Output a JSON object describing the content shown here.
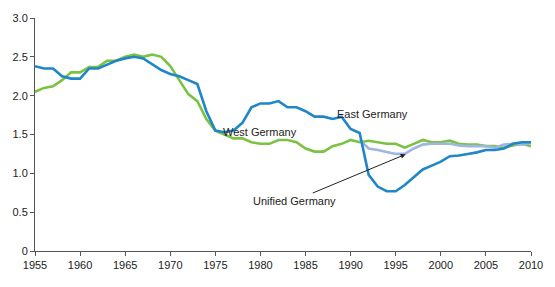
{
  "chart_data": {
    "type": "line",
    "x": [
      1955,
      1956,
      1957,
      1958,
      1959,
      1960,
      1961,
      1962,
      1963,
      1964,
      1965,
      1966,
      1967,
      1968,
      1969,
      1970,
      1971,
      1972,
      1973,
      1974,
      1975,
      1976,
      1977,
      1978,
      1979,
      1980,
      1981,
      1982,
      1983,
      1984,
      1985,
      1986,
      1987,
      1988,
      1989,
      1990,
      1991,
      1992,
      1993,
      1994,
      1995,
      1996,
      1997,
      1998,
      1999,
      2000,
      2001,
      2002,
      2003,
      2004,
      2005,
      2006,
      2007,
      2008,
      2009,
      2010
    ],
    "series": [
      {
        "name": "West Germany",
        "color": "#7cc242",
        "values": [
          2.05,
          2.1,
          2.12,
          2.2,
          2.3,
          2.3,
          2.37,
          2.37,
          2.45,
          2.45,
          2.5,
          2.53,
          2.5,
          2.53,
          2.5,
          2.38,
          2.2,
          2.02,
          1.93,
          1.7,
          1.55,
          1.5,
          1.45,
          1.45,
          1.4,
          1.38,
          1.38,
          1.43,
          1.43,
          1.4,
          1.32,
          1.28,
          1.28,
          1.35,
          1.38,
          1.43,
          1.4,
          1.42,
          1.4,
          1.38,
          1.38,
          1.33,
          1.38,
          1.43,
          1.4,
          1.4,
          1.42,
          1.38,
          1.37,
          1.37,
          1.35,
          1.35,
          1.33,
          1.36,
          1.38,
          1.35
        ]
      },
      {
        "name": "Unified Germany",
        "color": "#9fb6e2",
        "values": [
          null,
          null,
          null,
          null,
          null,
          null,
          null,
          null,
          null,
          null,
          null,
          null,
          null,
          null,
          null,
          null,
          null,
          null,
          null,
          null,
          null,
          null,
          null,
          null,
          null,
          null,
          null,
          null,
          null,
          null,
          null,
          null,
          null,
          null,
          null,
          null,
          1.43,
          1.32,
          1.3,
          1.27,
          1.25,
          1.25,
          1.32,
          1.37,
          1.38,
          1.38,
          1.38,
          1.36,
          1.35,
          1.35,
          1.35,
          1.33,
          1.37,
          1.38,
          1.37,
          1.39
        ]
      },
      {
        "name": "East Germany",
        "color": "#1f86c8",
        "values": [
          2.38,
          2.35,
          2.35,
          2.25,
          2.22,
          2.22,
          2.35,
          2.35,
          2.4,
          2.45,
          2.48,
          2.5,
          2.48,
          2.4,
          2.33,
          2.28,
          2.25,
          2.2,
          2.15,
          1.8,
          1.55,
          1.53,
          1.55,
          1.65,
          1.85,
          1.9,
          1.9,
          1.93,
          1.85,
          1.85,
          1.8,
          1.73,
          1.73,
          1.7,
          1.73,
          1.57,
          1.52,
          0.98,
          0.83,
          0.77,
          0.77,
          0.85,
          0.95,
          1.05,
          1.1,
          1.15,
          1.22,
          1.23,
          1.25,
          1.27,
          1.3,
          1.3,
          1.32,
          1.38,
          1.4,
          1.4
        ]
      }
    ],
    "xlim": [
      1955,
      2010
    ],
    "xticks": [
      1955,
      1960,
      1965,
      1970,
      1975,
      1980,
      1985,
      1990,
      1995,
      2000,
      2005,
      2010
    ],
    "ylim": [
      0,
      3
    ],
    "yticks": [
      0,
      0.5,
      {
        "value": 1,
        "label": "1.0"
      },
      1.5,
      {
        "value": 2,
        "label": "2.0"
      },
      2.5,
      {
        "value": 3,
        "label": "3.0"
      }
    ],
    "grid": false,
    "annotations": [
      {
        "text": "East Germany",
        "x": 1992.4,
        "y": 1.76
      },
      {
        "text": "West Germany",
        "x": 1980.0,
        "y": 1.53
      },
      {
        "text": "Unified Germany",
        "x": 1983.8,
        "y": 0.65,
        "arrow_x": 1996.2,
        "arrow_y": 1.25
      }
    ]
  }
}
